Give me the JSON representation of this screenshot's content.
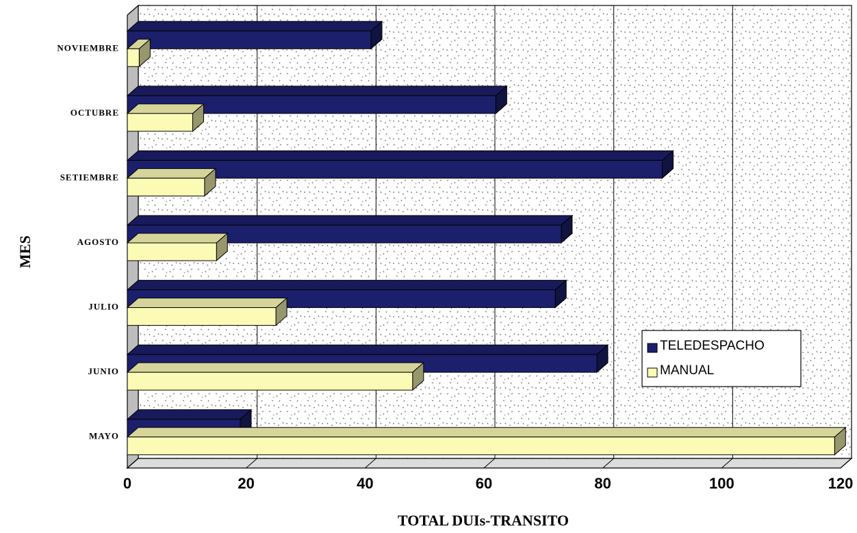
{
  "chart_data": {
    "type": "bar",
    "orientation": "horizontal",
    "categories": [
      "MAYO",
      "JUNIO",
      "JULIO",
      "AGOSTO",
      "SETIEMBRE",
      "OCTUBRE",
      "NOVIEMBRE"
    ],
    "series": [
      {
        "name": "TELEDESPACHO",
        "values": [
          19,
          79,
          72,
          73,
          90,
          62,
          41
        ],
        "color": "#1c1f6b"
      },
      {
        "name": "MANUAL",
        "values": [
          119,
          48,
          25,
          15,
          13,
          11,
          2
        ],
        "color": "#fbfbb6"
      }
    ],
    "xlabel": "TOTAL DUIs-TRANSITO",
    "ylabel": "MES",
    "xlim": [
      0,
      120
    ],
    "xticks": [
      "0",
      "20",
      "40",
      "60",
      "80",
      "100",
      "120"
    ],
    "grid": true,
    "legend_position": "right-lower",
    "background_style": "stippled-3d-wall"
  }
}
